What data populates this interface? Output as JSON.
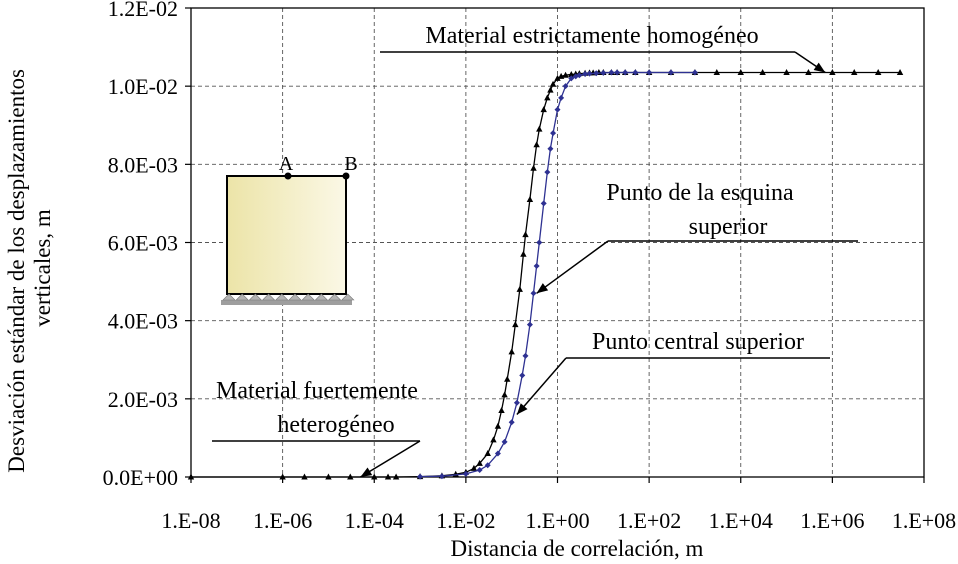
{
  "chart_data": {
    "type": "scatter",
    "x_scale": "log",
    "xlabel": "Distancia de correlación, m",
    "ylabel_lines": [
      "Desviación estándar de los desplazamientos",
      "verticales, m"
    ],
    "xlim": [
      1e-08,
      100000000.0
    ],
    "ylim": [
      0,
      0.012
    ],
    "x_ticks": [
      1e-08,
      1e-06,
      0.0001,
      0.01,
      1,
      100.0,
      10000.0,
      1000000.0,
      100000000.0
    ],
    "x_tick_labels": [
      "1.E-08",
      "1.E-06",
      "1.E-04",
      "1.E-02",
      "1.E+00",
      "1.E+02",
      "1.E+04",
      "1.E+06",
      "1.E+08"
    ],
    "y_ticks": [
      0,
      0.002,
      0.004,
      0.006,
      0.008,
      0.01,
      0.012
    ],
    "y_tick_labels": [
      "0.0E+00",
      "2.0E-03",
      "4.0E-03",
      "6.0E-03",
      "8.0E-03",
      "1.0E-02",
      "1.2E-02"
    ],
    "grid": "dashed",
    "series": [
      {
        "color": "#000000",
        "marker": "triangle",
        "x": [
          1e-08,
          1e-06,
          3e-06,
          1e-05,
          3e-05,
          0.0001,
          0.0002,
          0.0003,
          0.001,
          0.003,
          0.006,
          0.01,
          0.015,
          0.02,
          0.03,
          0.04,
          0.05,
          0.06,
          0.07,
          0.08,
          0.1,
          0.12,
          0.15,
          0.18,
          0.2,
          0.25,
          0.3,
          0.35,
          0.4,
          0.5,
          0.6,
          0.7,
          0.8,
          1,
          1.2,
          1.5,
          2,
          2.5,
          3,
          4,
          5,
          6,
          8,
          10,
          15,
          20,
          30,
          50,
          100,
          300,
          1000,
          3000,
          10000.0,
          30000.0,
          100000.0,
          300000.0,
          1000000.0,
          3000000.0,
          10000000.0,
          30000000.0
        ],
        "y": [
          0,
          0,
          0,
          0,
          0,
          0,
          0,
          0,
          1e-05,
          3e-05,
          7e-05,
          0.00012,
          0.00022,
          0.00035,
          0.0006,
          0.00095,
          0.0013,
          0.0017,
          0.0021,
          0.0025,
          0.0032,
          0.0039,
          0.0048,
          0.0057,
          0.0062,
          0.0071,
          0.0079,
          0.0085,
          0.0089,
          0.0094,
          0.0097,
          0.0099,
          0.01005,
          0.0102,
          0.01025,
          0.01028,
          0.0103,
          0.01031,
          0.01032,
          0.01033,
          0.01034,
          0.01034,
          0.01035,
          0.01035,
          0.01035,
          0.01035,
          0.01035,
          0.01035,
          0.01035,
          0.01035,
          0.01035,
          0.01035,
          0.01035,
          0.01035,
          0.01035,
          0.01035,
          0.01035,
          0.01035,
          0.01035,
          0.01035
        ]
      },
      {
        "color": "#2e3192",
        "marker": "diamond",
        "x": [
          0.001,
          0.003,
          0.01,
          0.02,
          0.03,
          0.05,
          0.07,
          0.1,
          0.13,
          0.17,
          0.2,
          0.25,
          0.3,
          0.35,
          0.4,
          0.5,
          0.6,
          0.7,
          0.8,
          1,
          1.2,
          1.5,
          2,
          2.5,
          3,
          4,
          5,
          7,
          10,
          15,
          20,
          30,
          50,
          100,
          300,
          1000
        ],
        "y": [
          1e-05,
          2e-05,
          8e-05,
          0.00018,
          0.0003,
          0.0006,
          0.0009,
          0.0014,
          0.0019,
          0.0026,
          0.0031,
          0.0039,
          0.0047,
          0.0054,
          0.006,
          0.007,
          0.0078,
          0.0084,
          0.0088,
          0.0094,
          0.0097,
          0.01,
          0.0102,
          0.01025,
          0.01028,
          0.01031,
          0.01032,
          0.01033,
          0.01034,
          0.01035,
          0.01035,
          0.01035,
          0.01035,
          0.01035,
          0.01035,
          0.01035
        ]
      }
    ],
    "annotations": [
      {
        "lines": [
          "Material estrictamente homogéneo"
        ],
        "target": [
          700000,
          0.01035
        ]
      },
      {
        "lines": [
          "Punto de la esquina",
          "superior"
        ],
        "target": [
          0.35,
          0.0047
        ]
      },
      {
        "lines": [
          "Punto central superior"
        ],
        "target": [
          0.13,
          0.0016
        ]
      },
      {
        "lines": [
          "Material fuertemente",
          "heterogéneo"
        ],
        "target": [
          5e-05,
          0
        ]
      }
    ],
    "inset": {
      "point_a_label": "A",
      "point_b_label": "B"
    }
  }
}
